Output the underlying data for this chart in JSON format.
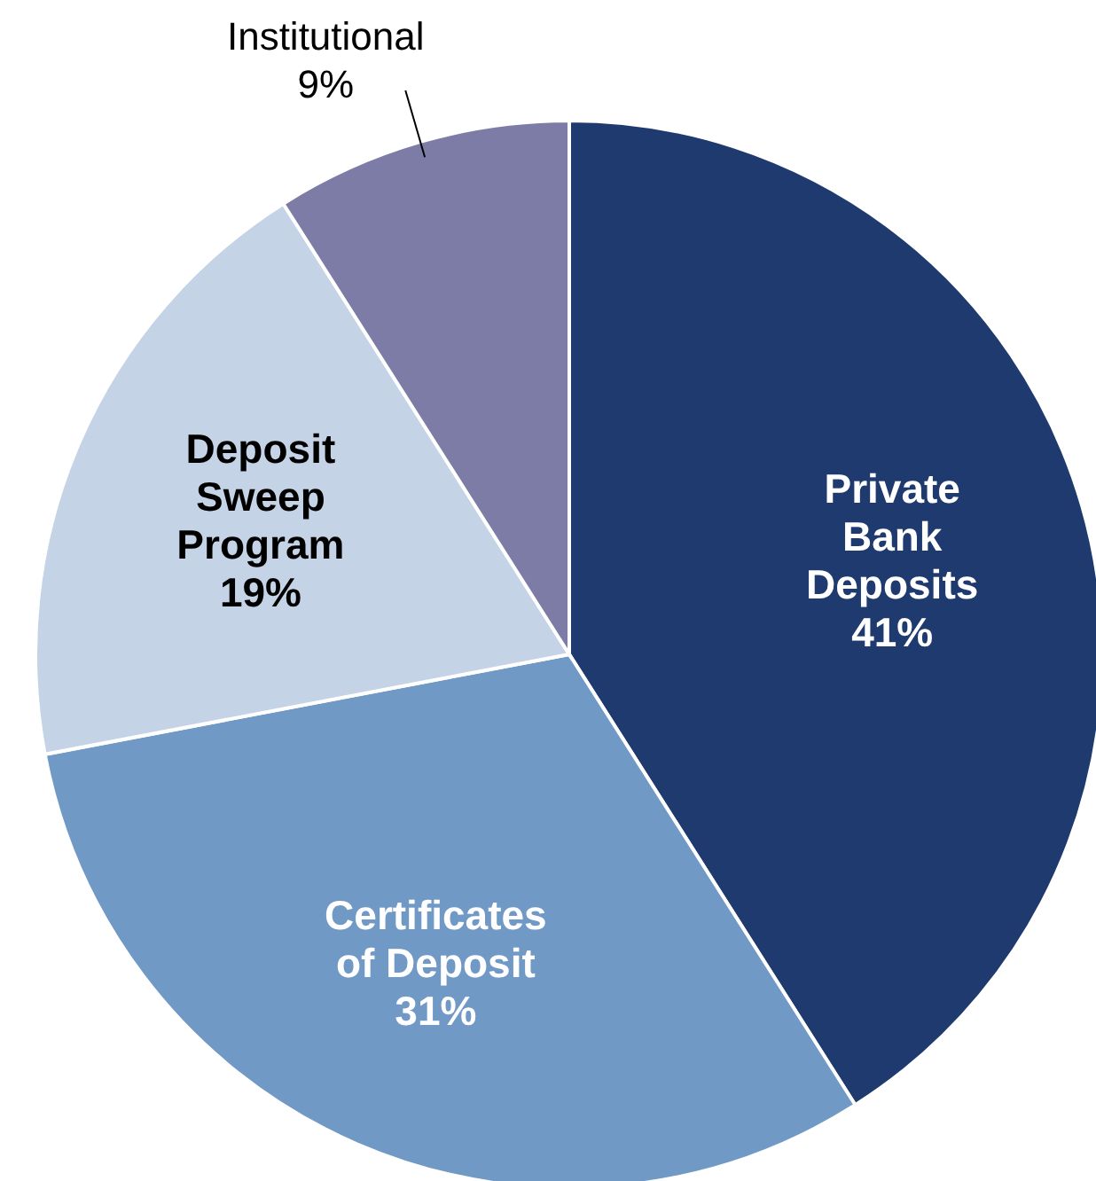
{
  "chart_data": {
    "type": "pie",
    "categories": [
      "Private Bank Deposits",
      "Certificates of Deposit",
      "Deposit Sweep Program",
      "Institutional"
    ],
    "values": [
      41,
      31,
      19,
      9
    ],
    "colors": [
      "#1f3a6e",
      "#7199c6",
      "#c5d3e7",
      "#7c7ca6"
    ],
    "value_labels": [
      "41%",
      "31%",
      "19%",
      "9%"
    ]
  }
}
